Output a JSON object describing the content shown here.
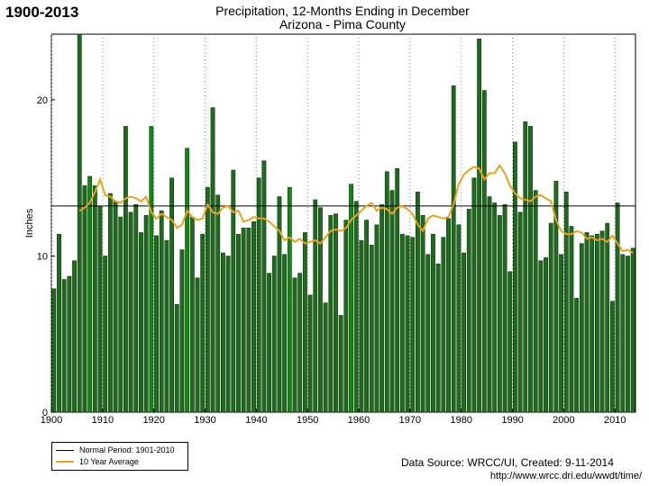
{
  "corner_label": "1900-2013",
  "chart_data": {
    "type": "bar",
    "title": "Precipitation, 12-Months Ending in December",
    "subtitle": "Arizona - Pima County",
    "ylabel": "Inches",
    "xlim": [
      1900,
      2014
    ],
    "ylim": [
      0,
      24.2
    ],
    "x_ticks": [
      1900,
      1910,
      1920,
      1930,
      1940,
      1950,
      1960,
      1970,
      1980,
      1990,
      2000,
      2010
    ],
    "y_ticks": [
      0,
      10,
      20
    ],
    "grid": "vertical dotted",
    "legend_position": "bottom-left",
    "normal_value": 13.2,
    "bar_color": "#1e6b1e",
    "highlight_color": "#0f8a0f",
    "normal_color": "#000000",
    "avg_color": "#e8a21e",
    "years": [
      1900,
      1901,
      1902,
      1903,
      1904,
      1905,
      1906,
      1907,
      1908,
      1909,
      1910,
      1911,
      1912,
      1913,
      1914,
      1915,
      1916,
      1917,
      1918,
      1919,
      1920,
      1921,
      1922,
      1923,
      1924,
      1925,
      1926,
      1927,
      1928,
      1929,
      1930,
      1931,
      1932,
      1933,
      1934,
      1935,
      1936,
      1937,
      1938,
      1939,
      1940,
      1941,
      1942,
      1943,
      1944,
      1945,
      1946,
      1947,
      1948,
      1949,
      1950,
      1951,
      1952,
      1953,
      1954,
      1955,
      1956,
      1957,
      1958,
      1959,
      1960,
      1961,
      1962,
      1963,
      1964,
      1965,
      1966,
      1967,
      1968,
      1969,
      1970,
      1971,
      1972,
      1973,
      1974,
      1975,
      1976,
      1977,
      1978,
      1979,
      1980,
      1981,
      1982,
      1983,
      1984,
      1985,
      1986,
      1987,
      1988,
      1989,
      1990,
      1991,
      1992,
      1993,
      1994,
      1995,
      1996,
      1997,
      1998,
      1999,
      2000,
      2001,
      2002,
      2003,
      2004,
      2005,
      2006,
      2007,
      2008,
      2009,
      2010,
      2011,
      2012,
      2013
    ],
    "values": [
      7.9,
      11.4,
      8.5,
      8.7,
      9.7,
      24.2,
      14.5,
      15.1,
      14.5,
      13.2,
      10.0,
      14.0,
      13.5,
      12.5,
      18.3,
      12.8,
      13.3,
      11.5,
      12.6,
      18.3,
      11.3,
      12.9,
      11.0,
      15.0,
      6.9,
      10.4,
      16.9,
      12.5,
      8.6,
      11.4,
      14.4,
      19.5,
      13.9,
      10.2,
      10.0,
      15.5,
      11.4,
      11.8,
      11.8,
      12.2,
      15.0,
      16.1,
      8.9,
      10.0,
      13.8,
      10.1,
      14.4,
      8.6,
      8.9,
      11.5,
      7.5,
      13.6,
      13.1,
      7.0,
      12.6,
      12.7,
      6.2,
      12.3,
      14.6,
      13.5,
      11.0,
      12.3,
      10.7,
      12.0,
      13.3,
      15.4,
      14.2,
      15.6,
      11.4,
      11.3,
      11.2,
      14.1,
      12.6,
      10.1,
      11.4,
      9.5,
      11.2,
      12.4,
      20.9,
      12.0,
      10.2,
      13.0,
      15.0,
      23.9,
      20.6,
      13.8,
      13.4,
      12.6,
      13.3,
      9.0,
      17.3,
      12.8,
      18.6,
      18.3,
      14.2,
      9.7,
      9.9,
      12.1,
      14.8,
      10.1,
      14.1,
      11.9,
      7.3,
      10.8,
      11.5,
      11.3,
      11.4,
      11.6,
      12.1,
      7.1,
      13.4,
      10.1,
      10.0,
      10.5
    ],
    "highlight_years": [
      1907,
      1919,
      1926,
      1946,
      1958
    ],
    "avg_years": [
      1905,
      1906,
      1907,
      1908,
      1909,
      1910,
      1911,
      1912,
      1913,
      1914,
      1915,
      1916,
      1917,
      1918,
      1919,
      1920,
      1921,
      1922,
      1923,
      1924,
      1925,
      1926,
      1927,
      1928,
      1929,
      1930,
      1931,
      1932,
      1933,
      1934,
      1935,
      1936,
      1937,
      1938,
      1939,
      1940,
      1941,
      1942,
      1943,
      1944,
      1945,
      1946,
      1947,
      1948,
      1949,
      1950,
      1951,
      1952,
      1953,
      1954,
      1955,
      1956,
      1957,
      1958,
      1959,
      1960,
      1961,
      1962,
      1963,
      1964,
      1965,
      1966,
      1967,
      1968,
      1969,
      1970,
      1971,
      1972,
      1973,
      1974,
      1975,
      1976,
      1977,
      1978,
      1979,
      1980,
      1981,
      1982,
      1983,
      1984,
      1985,
      1986,
      1987,
      1988,
      1989,
      1990,
      1991,
      1992,
      1993,
      1994,
      1995,
      1996,
      1997,
      1998,
      1999,
      2000,
      2001,
      2002,
      2003,
      2004,
      2005,
      2006,
      2007,
      2008,
      2009,
      2010,
      2011,
      2012,
      2013
    ],
    "avg_values": [
      12.9,
      13.1,
      13.4,
      14.1,
      14.9,
      13.9,
      13.8,
      13.5,
      13.4,
      13.7,
      13.8,
      13.7,
      13.5,
      13.8,
      12.8,
      12.4,
      12.7,
      12.5,
      12.3,
      11.8,
      12.0,
      12.9,
      12.5,
      12.3,
      12.4,
      13.3,
      12.8,
      12.7,
      13.1,
      13.2,
      12.8,
      12.9,
      12.2,
      12.3,
      12.5,
      12.4,
      12.4,
      12.2,
      11.9,
      11.6,
      11.0,
      11.2,
      10.9,
      11.1,
      10.8,
      10.9,
      11.0,
      10.8,
      11.2,
      11.6,
      11.7,
      11.6,
      11.8,
      12.3,
      12.6,
      12.9,
      13.2,
      13.4,
      12.9,
      13.1,
      13.0,
      12.7,
      13.1,
      13.2,
      13.0,
      12.7,
      12.0,
      11.6,
      12.4,
      12.6,
      12.5,
      12.4,
      12.5,
      13.3,
      14.6,
      15.2,
      15.5,
      15.7,
      15.6,
      14.9,
      15.3,
      15.3,
      15.8,
      15.3,
      14.5,
      14.0,
      13.7,
      13.6,
      13.5,
      13.8,
      13.9,
      13.7,
      13.5,
      12.3,
      11.6,
      11.4,
      11.4,
      11.6,
      11.5,
      11.1,
      11.2,
      11.0,
      11.1,
      10.9,
      11.3,
      10.8,
      10.3,
      10.4,
      10.2
    ]
  },
  "legend": {
    "normal_label": "Normal Period: 1901-2010",
    "avg_label": "10 Year Average"
  },
  "source": "Data Source: WRCC/UI, Created: 9-11-2014",
  "url": "http://www.wrcc.dri.edu/wwdt/time/"
}
